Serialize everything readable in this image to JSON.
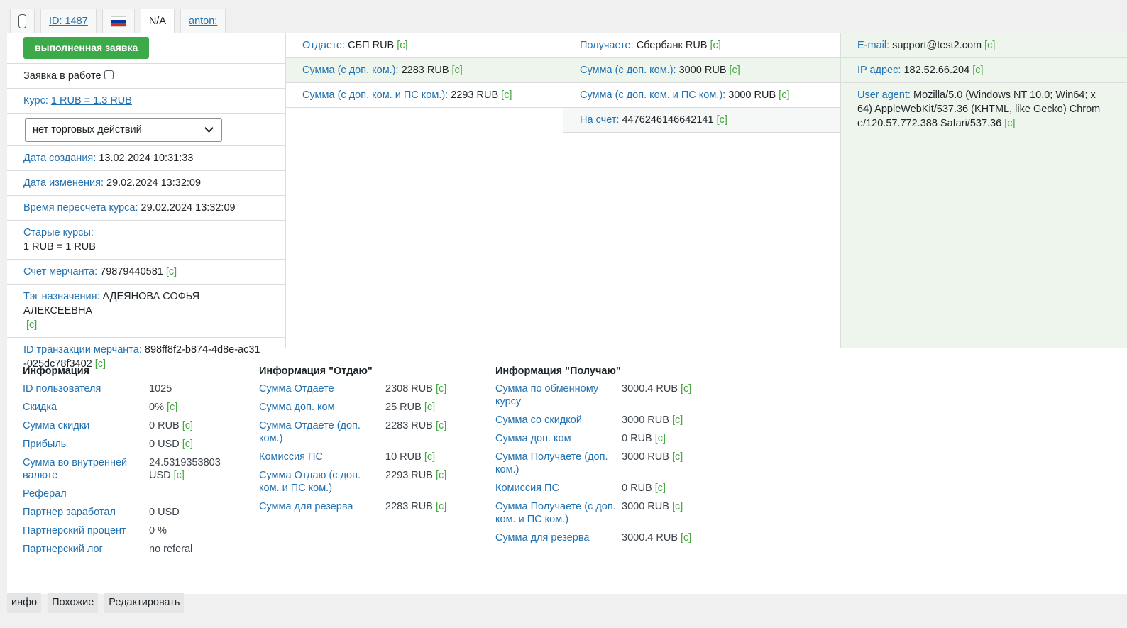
{
  "header_tabs": {
    "id": "ID: 1487",
    "na": "N/A",
    "user": "anton:"
  },
  "flag_colors": [
    "#ffffff",
    "#0039a6",
    "#d52b1e"
  ],
  "col1": {
    "status_button": "выполненная заявка",
    "in_work": "Заявка в работе",
    "rate_label": "Курс:",
    "rate_value": "1 RUB = 1.3 RUB",
    "select_value": "нет торговых действий",
    "created_label": "Дата создания:",
    "created_value": "13.02.2024 10:31:33",
    "modified_label": "Дата изменения:",
    "modified_value": "29.02.2024 13:32:09",
    "recalc_label": "Время пересчета курса:",
    "recalc_value": "29.02.2024 13:32:09",
    "old_rates_label": "Старые курсы:",
    "old_rates_value": "1 RUB = 1 RUB",
    "merchant_account_label": "Счет мерчанта:",
    "merchant_account_value": "79879440581",
    "tag_label": "Тэг назначения:",
    "tag_value": "АДЕЯНОВА СОФЬЯ АЛЕКСЕЕВНА",
    "txid_label": "ID транзакции мерчанта:",
    "txid_value_1": "898ff8f2-b874-4d8e-ac31",
    "txid_value_2": "-025dc78f3402"
  },
  "col2": {
    "give_label": "Отдаете:",
    "give_value": "СБП RUB",
    "sum_fee_label": "Сумма (с доп. ком.):",
    "sum_fee_value": "2283 RUB",
    "sum_fee_ps_label": "Сумма (с доп. ком. и ПС ком.):",
    "sum_fee_ps_value": "2293 RUB"
  },
  "col3": {
    "get_label": "Получаете:",
    "get_value": "Сбербанк RUB",
    "sum_fee_label": "Сумма (с доп. ком.):",
    "sum_fee_value": "3000 RUB",
    "sum_fee_ps_label": "Сумма (с доп. ком. и ПС ком.):",
    "sum_fee_ps_value": "3000 RUB",
    "account_label": "На счет:",
    "account_value": "4476246146642141"
  },
  "col4": {
    "email_label": "E-mail:",
    "email_value": "support@test2.com",
    "ip_label": "IP адрес:",
    "ip_value": "182.52.66.204",
    "ua_label": "User agent:",
    "ua_value_1": "Mozilla/5.0 (Windows NT 10.0; Win64; x",
    "ua_value_2": "64) AppleWebKit/537.36 (KHTML, like Gecko) Chrom",
    "ua_value_3": "e/120.57.772.388 Safari/537.36"
  },
  "copy_mark": "[c]",
  "info": {
    "title": "Информация",
    "rows": [
      {
        "k": "ID пользователя",
        "v": "1025",
        "c": false
      },
      {
        "k": "Скидка",
        "v": "0%",
        "c": true
      },
      {
        "k": "Сумма скидки",
        "v": "0 RUB",
        "c": true
      },
      {
        "k": "Прибыль",
        "v": "0 USD",
        "c": true
      },
      {
        "k": "Сумма во внутренней валюте",
        "v": "24.5319353803 USD",
        "c": true
      },
      {
        "k": "Реферал",
        "v": "",
        "c": false
      },
      {
        "k": "Партнер заработал",
        "v": "0 USD",
        "c": false
      },
      {
        "k": "Партнерский процент",
        "v": "0 %",
        "c": false
      },
      {
        "k": "Партнерский лог",
        "v": "no referal",
        "c": false
      }
    ]
  },
  "info_give": {
    "title": "Информация \"Отдаю\"",
    "rows": [
      {
        "k": "Сумма Отдаете",
        "v": "2308 RUB",
        "c": true
      },
      {
        "k": "Сумма доп. ком",
        "v": "25 RUB",
        "c": true
      },
      {
        "k": "Сумма Отдаете (доп. ком.)",
        "v": "2283 RUB",
        "c": true
      },
      {
        "k": "Комиссия ПС",
        "v": "10 RUB",
        "c": true
      },
      {
        "k": "Сумма Отдаю (с доп. ком. и ПС ком.)",
        "v": "2293 RUB",
        "c": true
      },
      {
        "k": "Сумма для резерва",
        "v": "2283 RUB",
        "c": true
      }
    ]
  },
  "info_get": {
    "title": "Информация \"Получаю\"",
    "rows": [
      {
        "k": "Сумма по обменному курсу",
        "v": "3000.4 RUB",
        "c": true
      },
      {
        "k": "Сумма со скидкой",
        "v": "3000 RUB",
        "c": true
      },
      {
        "k": "Сумма доп. ком",
        "v": "0 RUB",
        "c": true
      },
      {
        "k": "Сумма Получаете (доп. ком.)",
        "v": "3000 RUB",
        "c": true
      },
      {
        "k": "Комиссия ПС",
        "v": "0 RUB",
        "c": true
      },
      {
        "k": "Сумма Получаете (с доп. ком. и ПС ком.)",
        "v": "3000 RUB",
        "c": true
      },
      {
        "k": "Сумма для резерва",
        "v": "3000.4 RUB",
        "c": true
      }
    ]
  },
  "bottom_tabs": [
    "инфо",
    "Похожие",
    "Редактировать"
  ]
}
